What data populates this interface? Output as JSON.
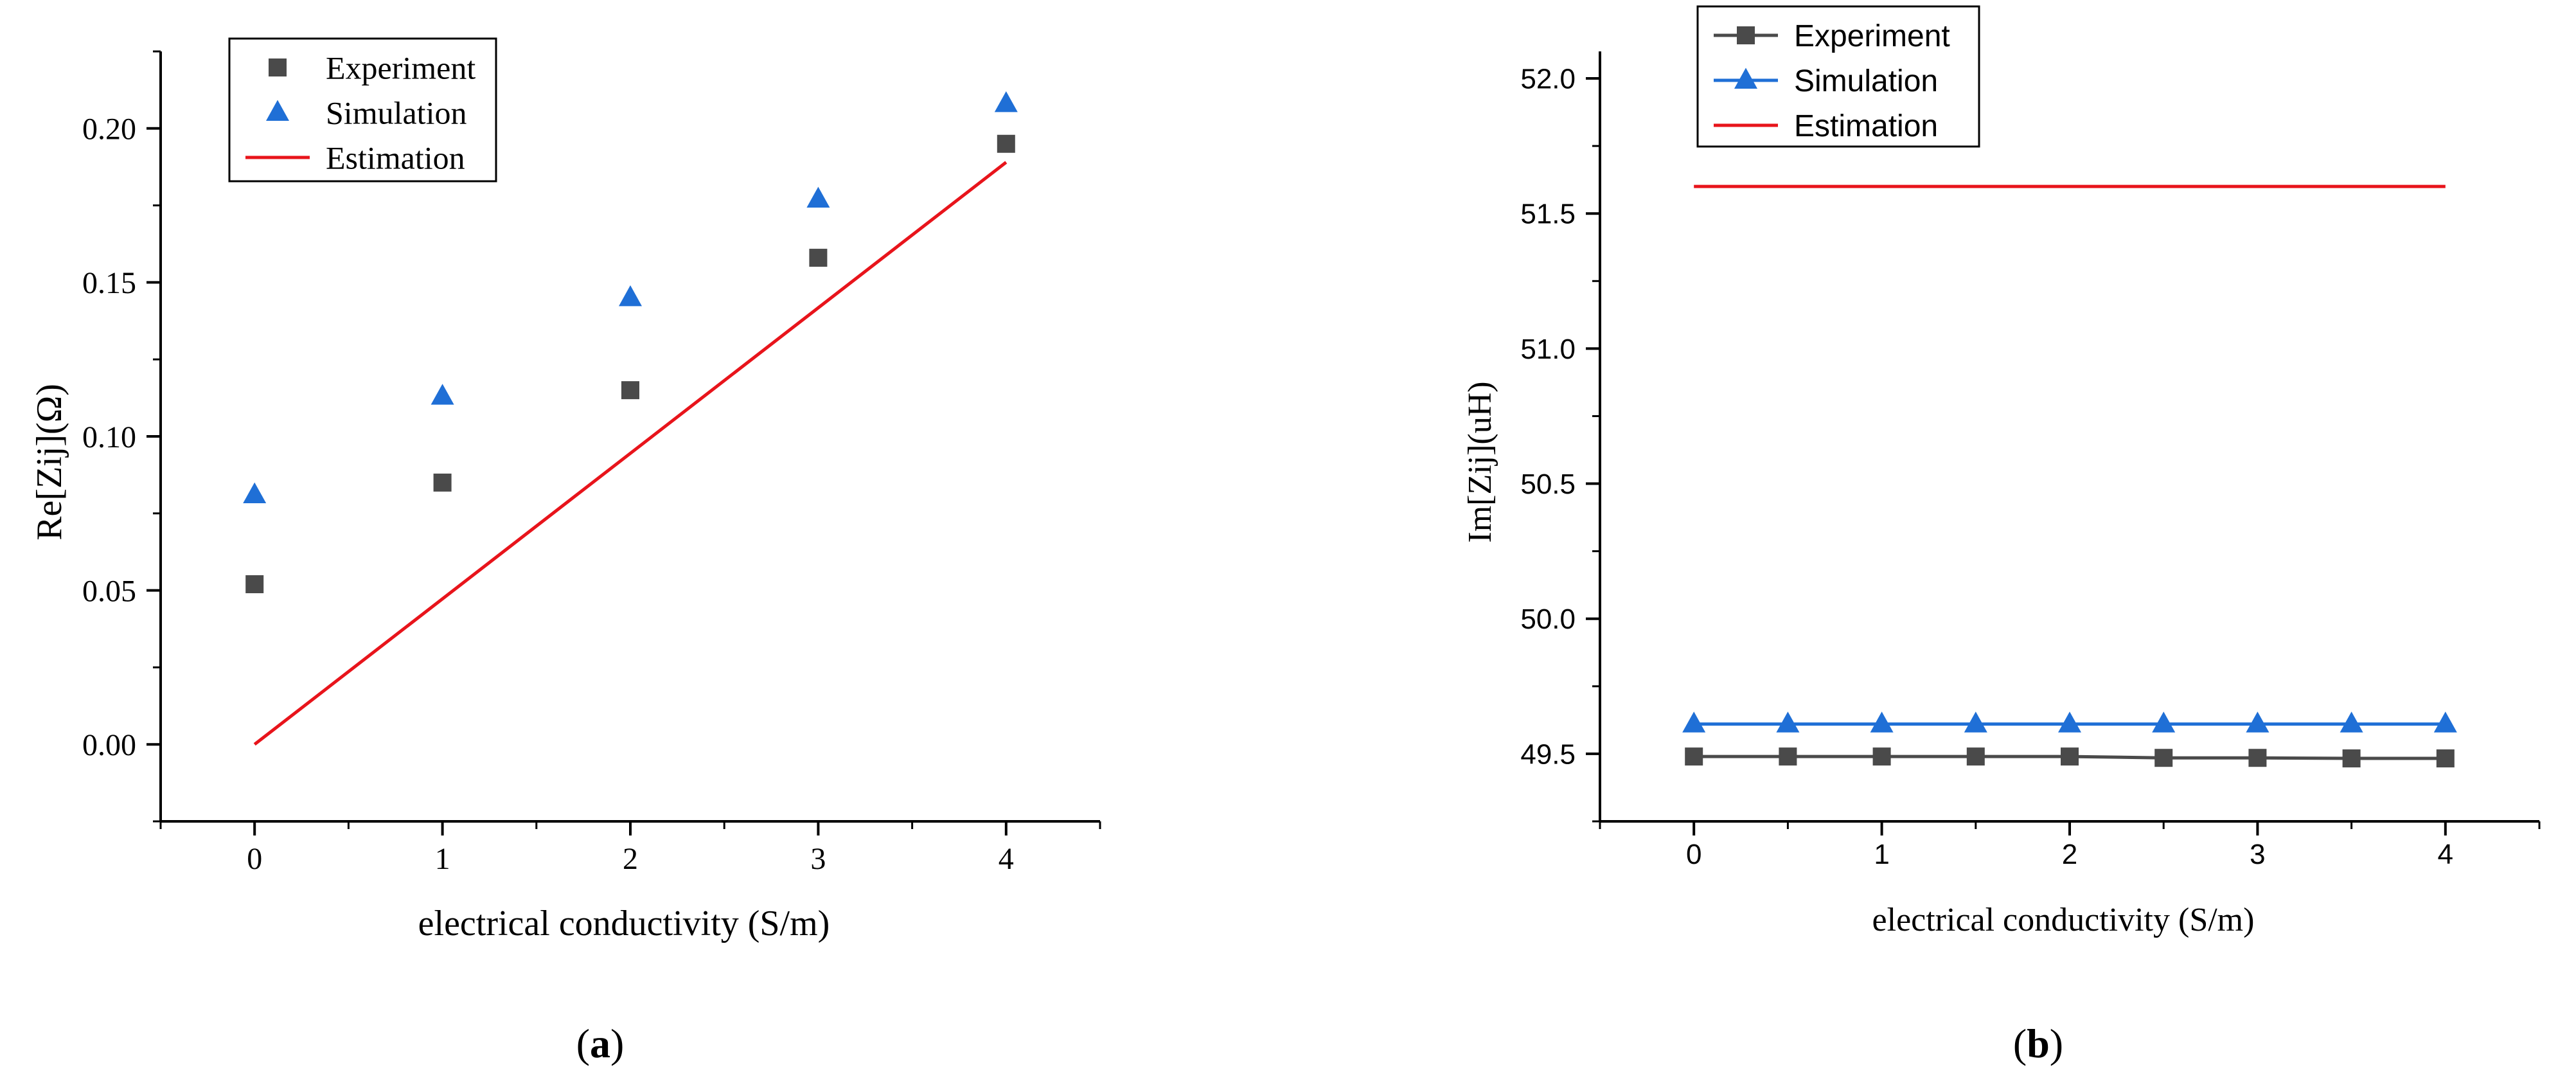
{
  "chart_data": [
    {
      "type": "scatter",
      "panel_label": "(a)",
      "xlabel": "electrical conductivity (S/m)",
      "ylabel": "Re[Zij](Ω)",
      "xlim": [
        -0.5,
        4.5
      ],
      "ylim": [
        -0.025,
        0.225
      ],
      "x_ticks": [
        "0",
        "1",
        "2",
        "3",
        "4"
      ],
      "y_ticks": [
        "0.00",
        "0.05",
        "0.10",
        "0.15",
        "0.20"
      ],
      "legend": [
        "Experiment",
        "Simulation",
        "Estimation"
      ],
      "series": [
        {
          "name": "Experiment",
          "marker": "square",
          "color": "#4a4a4a",
          "x": [
            0,
            1,
            2,
            3,
            4
          ],
          "y": [
            0.052,
            0.085,
            0.115,
            0.158,
            0.195
          ]
        },
        {
          "name": "Simulation",
          "marker": "triangle",
          "color": "#1f6fd6",
          "x": [
            0,
            1,
            2,
            3,
            4
          ],
          "y": [
            0.081,
            0.113,
            0.145,
            0.177,
            0.208
          ]
        },
        {
          "name": "Estimation",
          "marker": "line",
          "color": "#e8141b",
          "x": [
            0,
            4
          ],
          "y": [
            0.0,
            0.189
          ]
        }
      ]
    },
    {
      "type": "line",
      "panel_label": "(b)",
      "xlabel": "electrical conductivity (S/m)",
      "ylabel": "Im[Zij](uH)",
      "xlim": [
        -0.5,
        4.5
      ],
      "ylim": [
        49.25,
        52.1
      ],
      "x_ticks": [
        "0",
        "1",
        "2",
        "3",
        "4"
      ],
      "y_ticks": [
        "49.5",
        "50.0",
        "50.5",
        "51.0",
        "51.5",
        "52.0"
      ],
      "legend": [
        "Experiment",
        "Simulation",
        "Estimation"
      ],
      "series": [
        {
          "name": "Experiment",
          "marker": "square",
          "color": "#4a4a4a",
          "x": [
            0,
            0.5,
            1,
            1.5,
            2,
            2.5,
            3,
            3.5,
            4
          ],
          "y": [
            49.49,
            49.49,
            49.49,
            49.49,
            49.49,
            49.485,
            49.485,
            49.483,
            49.483
          ]
        },
        {
          "name": "Simulation",
          "marker": "triangle",
          "color": "#1f6fd6",
          "x": [
            0,
            0.5,
            1,
            1.5,
            2,
            2.5,
            3,
            3.5,
            4
          ],
          "y": [
            49.61,
            49.61,
            49.61,
            49.61,
            49.61,
            49.61,
            49.61,
            49.61,
            49.61
          ]
        },
        {
          "name": "Estimation",
          "marker": "line",
          "color": "#e8141b",
          "x": [
            0,
            4
          ],
          "y": [
            51.6,
            51.6
          ]
        }
      ]
    }
  ]
}
